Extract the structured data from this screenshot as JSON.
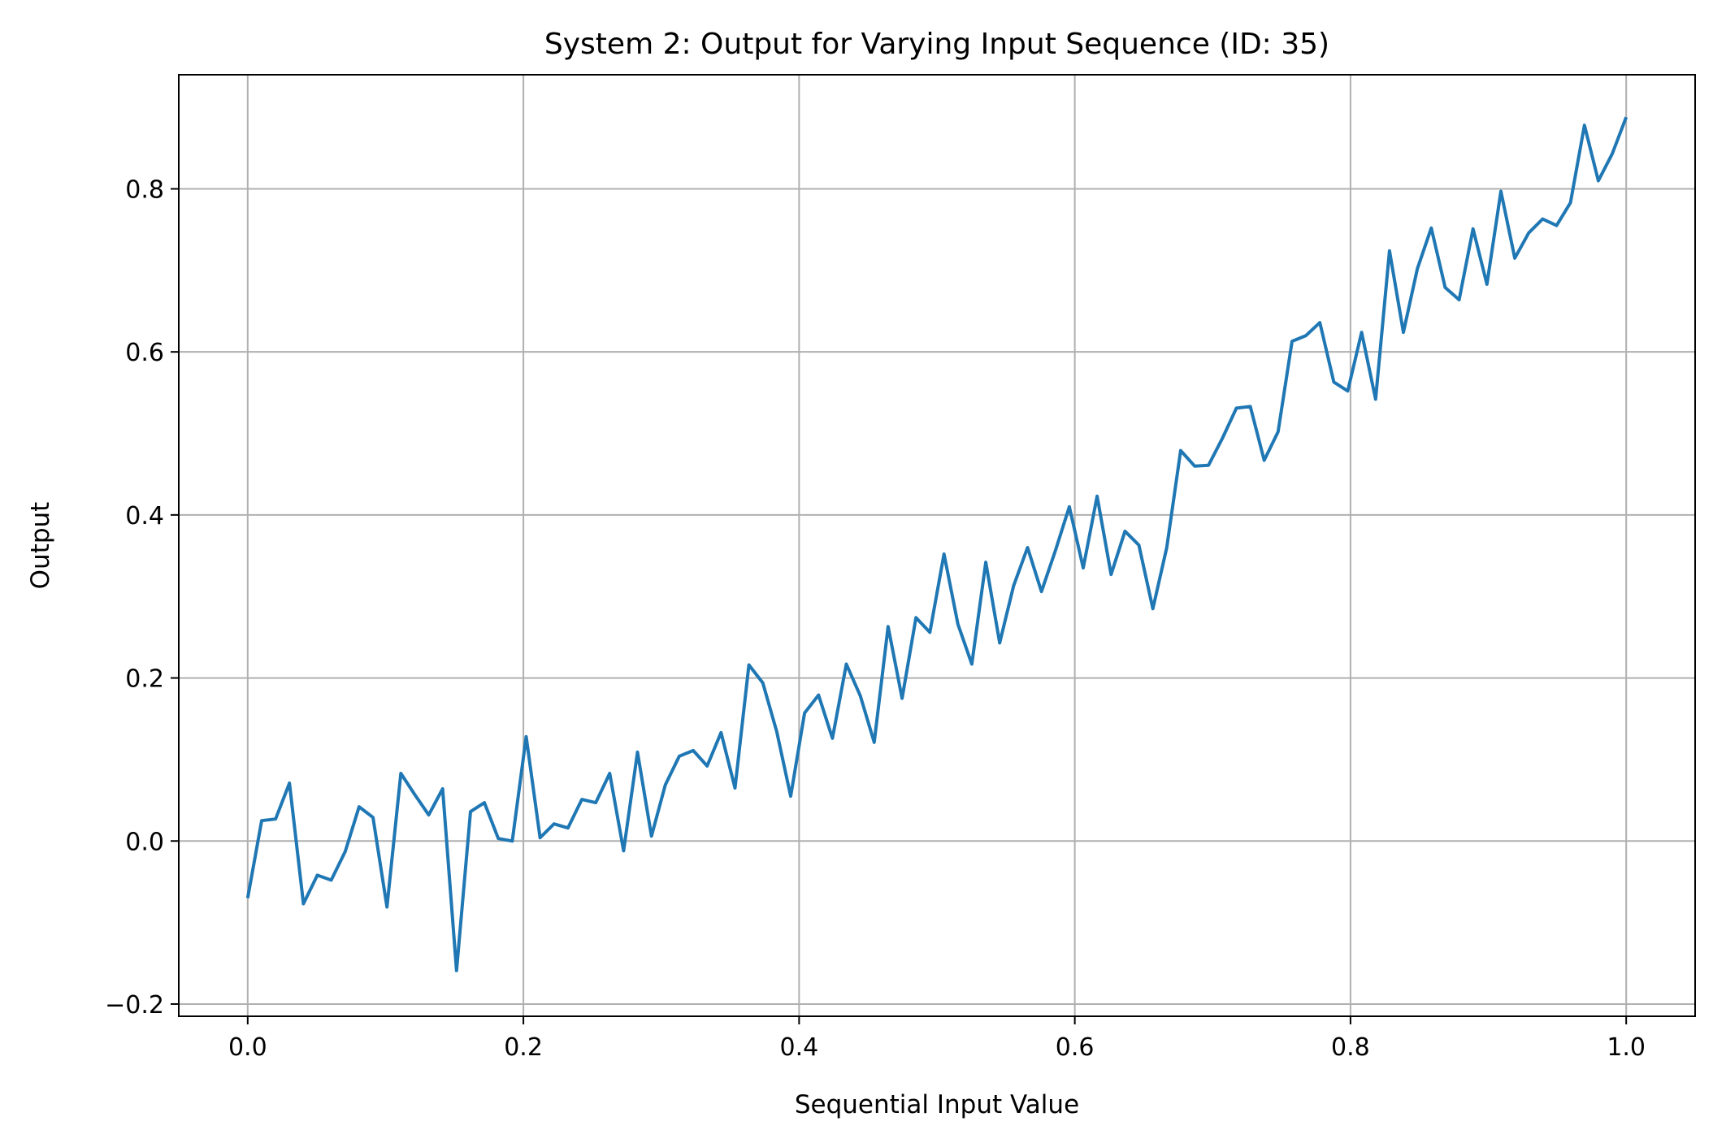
{
  "chart_data": {
    "type": "line",
    "title": "System 2: Output for Varying Input Sequence (ID: 35)",
    "xlabel": "Sequential Input Value",
    "ylabel": "Output",
    "xlim": [
      -0.05,
      1.05
    ],
    "ylim": [
      -0.215,
      0.94
    ],
    "xticks": [
      0.0,
      0.2,
      0.4,
      0.6,
      0.8,
      1.0
    ],
    "xtick_labels": [
      "0.0",
      "0.2",
      "0.4",
      "0.6",
      "0.8",
      "1.0"
    ],
    "yticks": [
      -0.2,
      0.0,
      0.2,
      0.4,
      0.6,
      0.8
    ],
    "ytick_labels": [
      "−0.2",
      "0.0",
      "0.2",
      "0.4",
      "0.6",
      "0.8"
    ],
    "grid": true,
    "legend": "none",
    "series_color": "#1f77b4",
    "grid_color": "#b0b0b0",
    "x": [
      0.0,
      0.0101,
      0.0202,
      0.0303,
      0.0404,
      0.0505,
      0.0606,
      0.0707,
      0.0808,
      0.0909,
      0.101,
      0.1111,
      0.1212,
      0.1313,
      0.1414,
      0.1515,
      0.1616,
      0.1717,
      0.1818,
      0.1919,
      0.202,
      0.2121,
      0.2222,
      0.2323,
      0.2424,
      0.2525,
      0.2626,
      0.2727,
      0.2828,
      0.2929,
      0.303,
      0.3131,
      0.3232,
      0.3333,
      0.3434,
      0.3535,
      0.3636,
      0.3737,
      0.3838,
      0.3939,
      0.404,
      0.4141,
      0.4242,
      0.4343,
      0.4444,
      0.4545,
      0.4646,
      0.4747,
      0.4848,
      0.4949,
      0.5051,
      0.5152,
      0.5253,
      0.5354,
      0.5455,
      0.5556,
      0.5657,
      0.5758,
      0.5859,
      0.596,
      0.6061,
      0.6162,
      0.6263,
      0.6364,
      0.6465,
      0.6566,
      0.6667,
      0.6768,
      0.6869,
      0.697,
      0.7071,
      0.7172,
      0.7273,
      0.7374,
      0.7475,
      0.7576,
      0.7677,
      0.7778,
      0.7879,
      0.798,
      0.8081,
      0.8182,
      0.8283,
      0.8384,
      0.8485,
      0.8586,
      0.8687,
      0.8788,
      0.8889,
      0.899,
      0.9091,
      0.9192,
      0.9293,
      0.9394,
      0.9495,
      0.9596,
      0.9697,
      0.9798,
      0.9899,
      1.0
    ],
    "y": [
      -0.07,
      0.025,
      0.027,
      0.071,
      -0.077,
      -0.042,
      -0.048,
      -0.013,
      0.042,
      0.029,
      -0.081,
      0.083,
      0.057,
      0.032,
      0.064,
      -0.159,
      0.036,
      0.047,
      0.003,
      0.0,
      0.128,
      0.004,
      0.021,
      0.016,
      0.051,
      0.047,
      0.083,
      -0.012,
      0.109,
      0.006,
      0.069,
      0.104,
      0.111,
      0.092,
      0.133,
      0.065,
      0.216,
      0.194,
      0.134,
      0.055,
      0.157,
      0.179,
      0.126,
      0.217,
      0.178,
      0.121,
      0.263,
      0.175,
      0.274,
      0.256,
      0.352,
      0.266,
      0.217,
      0.342,
      0.243,
      0.313,
      0.36,
      0.306,
      0.356,
      0.41,
      0.335,
      0.423,
      0.327,
      0.38,
      0.363,
      0.285,
      0.36,
      0.479,
      0.46,
      0.461,
      0.494,
      0.531,
      0.533,
      0.467,
      0.502,
      0.613,
      0.62,
      0.636,
      0.563,
      0.552,
      0.624,
      0.542,
      0.724,
      0.624,
      0.702,
      0.752,
      0.679,
      0.664,
      0.751,
      0.683,
      0.797,
      0.715,
      0.746,
      0.763,
      0.755,
      0.783,
      0.878,
      0.81,
      0.843,
      0.888
    ]
  }
}
